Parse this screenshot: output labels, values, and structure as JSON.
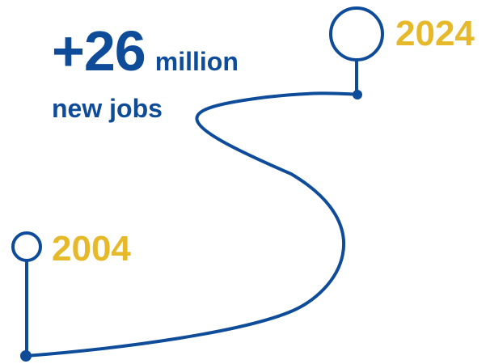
{
  "headline": {
    "number": "+26",
    "unit": "million",
    "subtitle": "new jobs"
  },
  "timeline": {
    "start_year": "2004",
    "end_year": "2024"
  },
  "colors": {
    "path": "#0E4C9A",
    "year": "#E5B92A",
    "headline": "#0E4C9A"
  }
}
